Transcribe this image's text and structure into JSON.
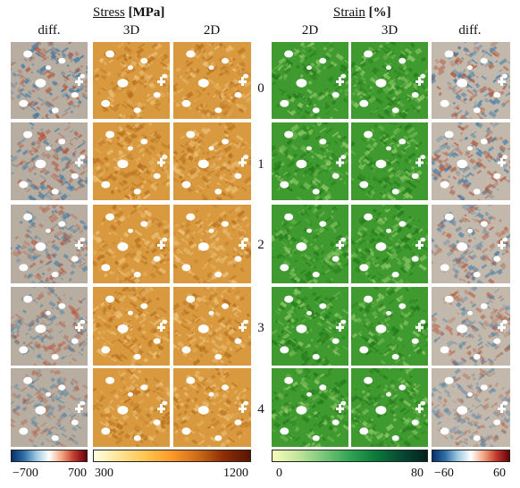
{
  "stress": {
    "title_word": "Stress",
    "title_unit": "[MPa]",
    "columns": [
      "diff.",
      "3D",
      "2D"
    ]
  },
  "strain": {
    "title_word": "Strain",
    "title_unit": "[%]",
    "columns": [
      "2D",
      "3D",
      "diff."
    ]
  },
  "rows": [
    "0",
    "1",
    "2",
    "3",
    "4"
  ],
  "colorbars": [
    {
      "name": "stress-diff",
      "min_label": "−700",
      "max_label": "700",
      "colors": [
        "#08306b",
        "#2f6fa8",
        "#9ecae1",
        "#ffffff",
        "#f4a582",
        "#c0392b",
        "#67000d"
      ]
    },
    {
      "name": "stress",
      "min_label": "300",
      "max_label": "1200",
      "colors": [
        "#ffffe5",
        "#fee391",
        "#fec44f",
        "#fe9929",
        "#cc6a18",
        "#8c2d04",
        "#5a1502"
      ]
    },
    {
      "name": "strain",
      "min_label": "0",
      "max_label": "80",
      "colors": [
        "#f7fcb9",
        "#c2e699",
        "#78c679",
        "#31a354",
        "#0b7a3a",
        "#064a32",
        "#03221d"
      ]
    },
    {
      "name": "strain-diff",
      "min_label": "−60",
      "max_label": "60",
      "colors": [
        "#08306b",
        "#2f6fa8",
        "#9ecae1",
        "#ffffff",
        "#f4a582",
        "#c0392b",
        "#67000d"
      ]
    }
  ],
  "panel_styles": {
    "stress-diff": {
      "base": "#b7ada0",
      "c1": "#3d7aa8",
      "c2": "#b4553a"
    },
    "stress": {
      "base": "#d99a3f",
      "c1": "#b8701f",
      "c2": "#edc27a"
    },
    "strain": {
      "base": "#3f9a2f",
      "c1": "#257a1c",
      "c2": "#8fc96a"
    },
    "strain-diff": {
      "base": "#c2b8ab",
      "c1": "#3d7aa8",
      "c2": "#b4553a"
    }
  }
}
